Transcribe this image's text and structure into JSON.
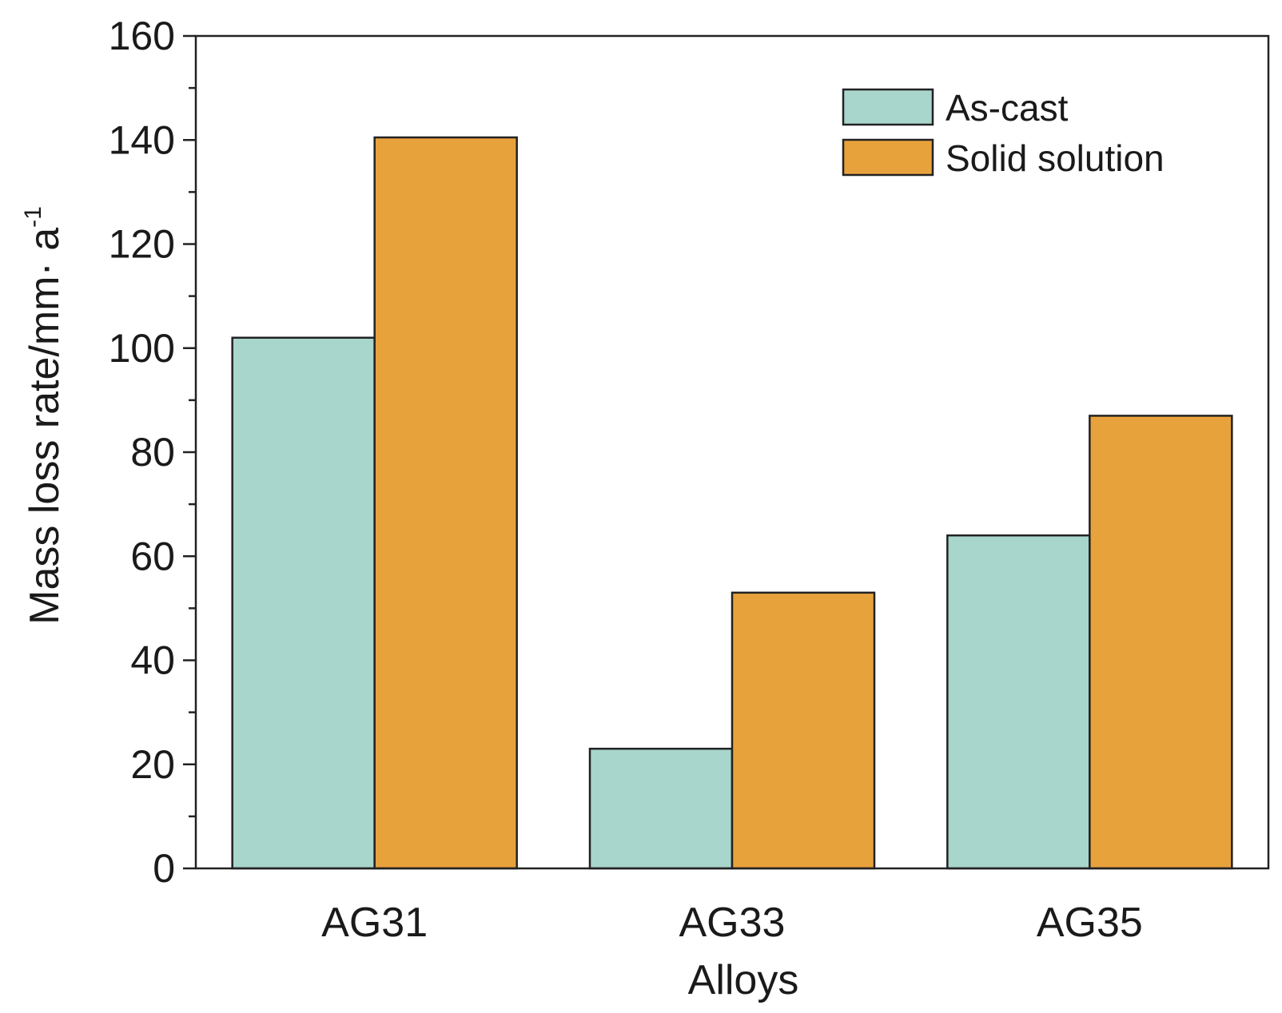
{
  "chart_data": {
    "type": "bar",
    "title": "",
    "categories": [
      "AG31",
      "AG33",
      "AG35"
    ],
    "series": [
      {
        "name": "As-cast",
        "values": [
          102,
          23,
          64
        ],
        "color": "#a8d5cc"
      },
      {
        "name": "Solid solution",
        "values": [
          140.5,
          53,
          87
        ],
        "color": "#e8a23c"
      }
    ],
    "xlabel": "Alloys",
    "ylabel": {
      "base": "Mass loss rate/mm· a",
      "superscript": "-1"
    },
    "ylim": [
      0,
      160
    ],
    "yticks": [
      0,
      20,
      40,
      60,
      80,
      100,
      120,
      140,
      160
    ],
    "yminor_step": 10,
    "grid": false,
    "legend_position": "top-right"
  }
}
